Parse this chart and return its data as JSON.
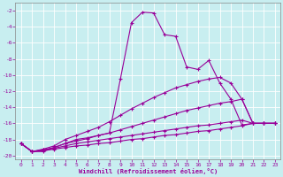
{
  "xlabel": "Windchill (Refroidissement éolien,°C)",
  "bg_color": "#c8eef0",
  "line_color": "#990099",
  "xlim": [
    -0.5,
    23.5
  ],
  "ylim": [
    -20.5,
    -1.0
  ],
  "xticks": [
    0,
    1,
    2,
    3,
    4,
    5,
    6,
    7,
    8,
    9,
    10,
    11,
    12,
    13,
    14,
    15,
    16,
    17,
    18,
    19,
    20,
    21,
    22,
    23
  ],
  "yticks": [
    -2,
    -4,
    -6,
    -8,
    -10,
    -12,
    -14,
    -16,
    -18,
    -20
  ],
  "series": [
    {
      "x": [
        0,
        1,
        2,
        3,
        4,
        5,
        6,
        7,
        8,
        9,
        10,
        11,
        12,
        13,
        14,
        15,
        16,
        17,
        18,
        19,
        20,
        21,
        22,
        23
      ],
      "y": [
        -18.5,
        -19.5,
        -19.5,
        -19.0,
        -18.5,
        -18.0,
        -17.8,
        -17.5,
        -17.2,
        -10.5,
        -3.5,
        -2.2,
        -2.3,
        -5.0,
        -5.2,
        -9.0,
        -9.3,
        -8.2,
        -11.0,
        -13.0,
        -16.2,
        -16.0,
        -16.0,
        -16.0
      ]
    },
    {
      "x": [
        0,
        1,
        2,
        3,
        4,
        5,
        6,
        7,
        8,
        9,
        10,
        11,
        12,
        13,
        14,
        15,
        16,
        17,
        18,
        19,
        20,
        21,
        22,
        23
      ],
      "y": [
        -18.5,
        -19.5,
        -19.2,
        -18.8,
        -18.0,
        -17.5,
        -17.0,
        -16.5,
        -15.8,
        -15.0,
        -14.2,
        -13.5,
        -12.8,
        -12.2,
        -11.6,
        -11.2,
        -10.8,
        -10.5,
        -10.3,
        -11.0,
        -13.0,
        -16.0,
        -16.0,
        -16.0
      ]
    },
    {
      "x": [
        0,
        1,
        2,
        3,
        4,
        5,
        6,
        7,
        8,
        9,
        10,
        11,
        12,
        13,
        14,
        15,
        16,
        17,
        18,
        19,
        20,
        21,
        22,
        23
      ],
      "y": [
        -18.5,
        -19.5,
        -19.3,
        -19.0,
        -18.5,
        -18.2,
        -17.9,
        -17.5,
        -17.2,
        -16.8,
        -16.4,
        -16.0,
        -15.6,
        -15.2,
        -14.8,
        -14.4,
        -14.1,
        -13.8,
        -13.5,
        -13.3,
        -13.0,
        -16.0,
        -16.0,
        -16.0
      ]
    },
    {
      "x": [
        0,
        1,
        2,
        3,
        4,
        5,
        6,
        7,
        8,
        9,
        10,
        11,
        12,
        13,
        14,
        15,
        16,
        17,
        18,
        19,
        20,
        21,
        22,
        23
      ],
      "y": [
        -18.5,
        -19.5,
        -19.3,
        -19.1,
        -18.8,
        -18.5,
        -18.3,
        -18.1,
        -17.9,
        -17.7,
        -17.5,
        -17.3,
        -17.1,
        -16.9,
        -16.7,
        -16.5,
        -16.3,
        -16.2,
        -16.0,
        -15.8,
        -15.6,
        -16.0,
        -16.0,
        -16.0
      ]
    },
    {
      "x": [
        0,
        1,
        2,
        3,
        4,
        5,
        6,
        7,
        8,
        9,
        10,
        11,
        12,
        13,
        14,
        15,
        16,
        17,
        18,
        19,
        20,
        21,
        22,
        23
      ],
      "y": [
        -18.5,
        -19.5,
        -19.4,
        -19.2,
        -19.0,
        -18.8,
        -18.7,
        -18.5,
        -18.4,
        -18.2,
        -18.0,
        -17.9,
        -17.7,
        -17.5,
        -17.4,
        -17.2,
        -17.0,
        -16.9,
        -16.7,
        -16.5,
        -16.3,
        -16.0,
        -16.0,
        -16.0
      ]
    }
  ]
}
